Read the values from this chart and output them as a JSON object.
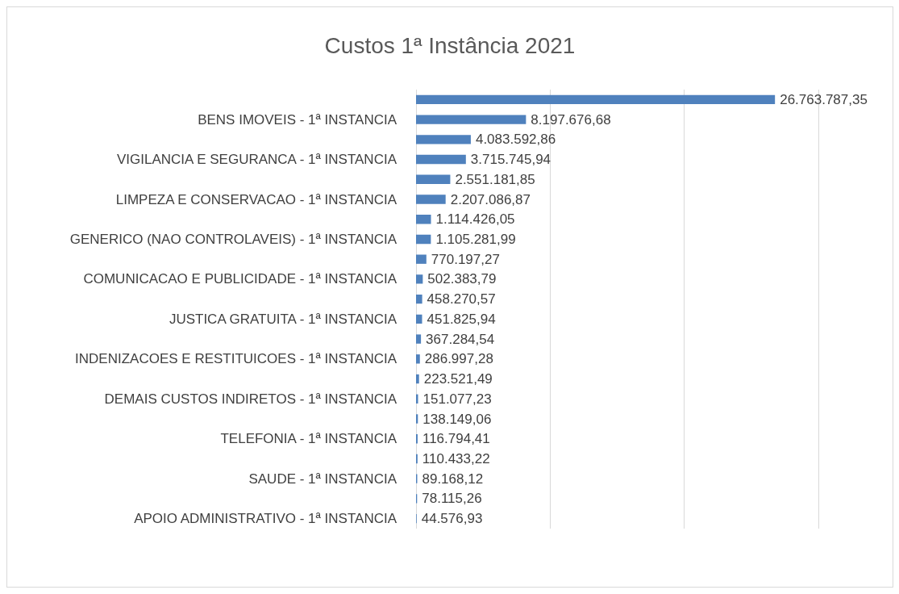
{
  "chart_data": {
    "type": "bar",
    "orientation": "horizontal",
    "title": "Custos 1ª Instância 2021",
    "categories": [
      null,
      "BENS IMOVEIS - 1ª INSTANCIA",
      null,
      "VIGILANCIA E SEGURANCA - 1ª INSTANCIA",
      null,
      "LIMPEZA E CONSERVACAO - 1ª INSTANCIA",
      null,
      "GENERICO (NAO CONTROLAVEIS) - 1ª INSTANCIA",
      null,
      "COMUNICACAO E PUBLICIDADE - 1ª INSTANCIA",
      null,
      "JUSTICA GRATUITA - 1ª INSTANCIA",
      null,
      "INDENIZACOES E RESTITUICOES - 1ª INSTANCIA",
      null,
      "DEMAIS CUSTOS INDIRETOS - 1ª INSTANCIA",
      null,
      "TELEFONIA - 1ª INSTANCIA",
      null,
      "SAUDE - 1ª INSTANCIA",
      null,
      "APOIO ADMINISTRATIVO - 1ª INSTANCIA"
    ],
    "values": [
      26763787.35,
      8197676.68,
      4083592.86,
      3715745.94,
      2551181.85,
      2207086.87,
      1114426.05,
      1105281.99,
      770197.27,
      502383.79,
      458270.57,
      451825.94,
      367284.54,
      286997.28,
      223521.49,
      151077.23,
      138149.06,
      116794.41,
      110433.22,
      89168.12,
      78115.26,
      44576.93
    ],
    "value_labels": [
      "26.763.787,35",
      "8.197.676,68",
      "4.083.592,86",
      "3.715.745,94",
      "2.551.181,85",
      "2.207.086,87",
      "1.114.426,05",
      "1.105.281,99",
      "770.197,27",
      "502.383,79",
      "458.270,57",
      "451.825,94",
      "367.284,54",
      "286.997,28",
      "223.521,49",
      "151.077,23",
      "138.149,06",
      "116.794,41",
      "110.433,22",
      "89.168,12",
      "78.115,26",
      "44.576,93"
    ],
    "color": "#4f81bd",
    "xlim": [
      0,
      30000000
    ],
    "xticks": [
      {
        "value": 0,
        "label": null
      },
      {
        "value": 10000000,
        "label": null
      },
      {
        "value": 20000000,
        "label": null
      },
      {
        "value": 30000000,
        "label": null
      }
    ],
    "grid": "x",
    "tick_labels": "y"
  }
}
